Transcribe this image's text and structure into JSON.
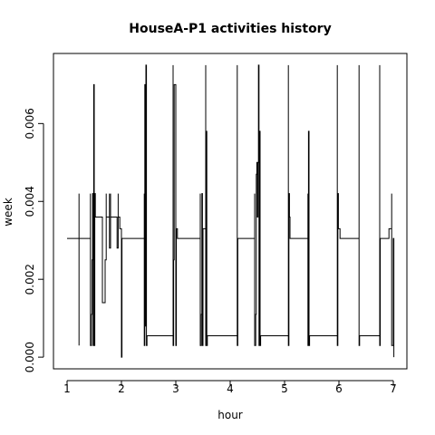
{
  "chart_data": {
    "type": "line",
    "title": "HouseA-P1 activities history",
    "xlabel": "hour",
    "ylabel": "week",
    "xlim": [
      0.75,
      7.25
    ],
    "ylim": [
      -0.0003,
      0.0078
    ],
    "x_ticks": [
      1,
      2,
      3,
      4,
      5,
      6,
      7
    ],
    "x_tick_labels": [
      "1",
      "2",
      "3",
      "4",
      "5",
      "6",
      "7"
    ],
    "y_ticks": [
      0.0,
      0.002,
      0.004,
      0.006
    ],
    "y_tick_labels": [
      "0.000",
      "0.002",
      "0.004",
      "0.006"
    ],
    "grid": false,
    "legend": "none",
    "line_color": "#000000",
    "series": [
      {
        "points": [
          [
            1.0,
            0.00305
          ],
          [
            1.22,
            0.00305
          ],
          [
            1.22,
            0.0042
          ],
          [
            1.22,
            0.0003
          ],
          [
            1.22,
            0.00305
          ],
          [
            1.43,
            0.00305
          ],
          [
            1.43,
            0.0042
          ],
          [
            1.43,
            0.0003
          ],
          [
            1.45,
            0.0003
          ],
          [
            1.45,
            0.0011
          ],
          [
            1.46,
            0.0011
          ],
          [
            1.46,
            0.0025
          ],
          [
            1.47,
            0.0025
          ],
          [
            1.47,
            0.0042
          ],
          [
            1.48,
            0.0042
          ],
          [
            1.48,
            0.0003
          ],
          [
            1.49,
            0.0003
          ],
          [
            1.49,
            0.007
          ],
          [
            1.5,
            0.007
          ],
          [
            1.5,
            0.0003
          ],
          [
            1.51,
            0.0003
          ],
          [
            1.51,
            0.0042
          ],
          [
            1.52,
            0.0042
          ],
          [
            1.52,
            0.0036
          ],
          [
            1.65,
            0.0036
          ],
          [
            1.65,
            0.0014
          ],
          [
            1.7,
            0.0014
          ],
          [
            1.7,
            0.0025
          ],
          [
            1.72,
            0.0025
          ],
          [
            1.72,
            0.0042
          ],
          [
            1.72,
            0.0036
          ],
          [
            1.78,
            0.0036
          ],
          [
            1.78,
            0.0042
          ],
          [
            1.78,
            0.0028
          ],
          [
            1.8,
            0.0028
          ],
          [
            1.8,
            0.0042
          ],
          [
            1.8,
            0.0036
          ],
          [
            1.92,
            0.0036
          ],
          [
            1.92,
            0.0028
          ],
          [
            1.94,
            0.0028
          ],
          [
            1.94,
            0.0042
          ],
          [
            1.94,
            0.0036
          ],
          [
            1.97,
            0.0036
          ],
          [
            1.97,
            0.0033
          ],
          [
            2.0,
            0.0033
          ],
          [
            2.0,
            0.0
          ],
          [
            2.01,
            0.0
          ],
          [
            2.01,
            0.00305
          ],
          [
            2.42,
            0.00305
          ],
          [
            2.42,
            0.0042
          ],
          [
            2.42,
            0.0003
          ],
          [
            2.43,
            0.0003
          ],
          [
            2.43,
            0.007
          ],
          [
            2.44,
            0.007
          ],
          [
            2.44,
            0.0008
          ],
          [
            2.45,
            0.0008
          ],
          [
            2.45,
            0.0075
          ],
          [
            2.46,
            0.0075
          ],
          [
            2.46,
            0.0003
          ],
          [
            2.47,
            0.0003
          ],
          [
            2.47,
            0.00055
          ],
          [
            2.95,
            0.00055
          ],
          [
            2.95,
            0.0075
          ],
          [
            2.95,
            0.0003
          ],
          [
            2.96,
            0.0003
          ],
          [
            2.96,
            0.0025
          ],
          [
            2.97,
            0.0025
          ],
          [
            2.97,
            0.007
          ],
          [
            3.0,
            0.007
          ],
          [
            3.0,
            0.0003
          ],
          [
            3.01,
            0.0003
          ],
          [
            3.01,
            0.0033
          ],
          [
            3.03,
            0.0033
          ],
          [
            3.03,
            0.00305
          ],
          [
            3.45,
            0.00305
          ],
          [
            3.45,
            0.0042
          ],
          [
            3.45,
            0.0003
          ],
          [
            3.47,
            0.0003
          ],
          [
            3.47,
            0.0011
          ],
          [
            3.48,
            0.0011
          ],
          [
            3.48,
            0.0042
          ],
          [
            3.49,
            0.0042
          ],
          [
            3.49,
            0.0003
          ],
          [
            3.5,
            0.0003
          ],
          [
            3.5,
            0.0033
          ],
          [
            3.55,
            0.0033
          ],
          [
            3.55,
            0.0075
          ],
          [
            3.55,
            0.0003
          ],
          [
            3.56,
            0.0003
          ],
          [
            3.56,
            0.0058
          ],
          [
            3.57,
            0.0058
          ],
          [
            3.57,
            0.0003
          ],
          [
            3.58,
            0.0003
          ],
          [
            3.58,
            0.00055
          ],
          [
            4.13,
            0.00055
          ],
          [
            4.13,
            0.0075
          ],
          [
            4.13,
            0.0003
          ],
          [
            4.14,
            0.0003
          ],
          [
            4.14,
            0.00305
          ],
          [
            4.45,
            0.00305
          ],
          [
            4.45,
            0.0042
          ],
          [
            4.45,
            0.0003
          ],
          [
            4.47,
            0.0003
          ],
          [
            4.47,
            0.0011
          ],
          [
            4.48,
            0.0011
          ],
          [
            4.48,
            0.0047
          ],
          [
            4.49,
            0.0047
          ],
          [
            4.49,
            0.005
          ],
          [
            4.5,
            0.005
          ],
          [
            4.5,
            0.0036
          ],
          [
            4.51,
            0.0036
          ],
          [
            4.51,
            0.005
          ],
          [
            4.52,
            0.005
          ],
          [
            4.52,
            0.0075
          ],
          [
            4.53,
            0.0075
          ],
          [
            4.53,
            0.0003
          ],
          [
            4.54,
            0.0003
          ],
          [
            4.54,
            0.0058
          ],
          [
            4.55,
            0.0058
          ],
          [
            4.55,
            0.0003
          ],
          [
            4.56,
            0.0003
          ],
          [
            4.56,
            0.00055
          ],
          [
            5.07,
            0.00055
          ],
          [
            5.07,
            0.0075
          ],
          [
            5.07,
            0.0003
          ],
          [
            5.08,
            0.0003
          ],
          [
            5.08,
            0.0042
          ],
          [
            5.09,
            0.0042
          ],
          [
            5.09,
            0.0036
          ],
          [
            5.1,
            0.0036
          ],
          [
            5.1,
            0.00305
          ],
          [
            5.43,
            0.00305
          ],
          [
            5.43,
            0.0042
          ],
          [
            5.43,
            0.0003
          ],
          [
            5.44,
            0.0003
          ],
          [
            5.44,
            0.0058
          ],
          [
            5.45,
            0.0058
          ],
          [
            5.45,
            0.0003
          ],
          [
            5.46,
            0.0003
          ],
          [
            5.46,
            0.00055
          ],
          [
            5.97,
            0.00055
          ],
          [
            5.97,
            0.0075
          ],
          [
            5.97,
            0.0003
          ],
          [
            5.98,
            0.0003
          ],
          [
            5.98,
            0.0042
          ],
          [
            5.99,
            0.0042
          ],
          [
            5.99,
            0.0033
          ],
          [
            6.02,
            0.0033
          ],
          [
            6.02,
            0.00305
          ],
          [
            6.37,
            0.00305
          ],
          [
            6.37,
            0.0075
          ],
          [
            6.37,
            0.0003
          ],
          [
            6.38,
            0.0003
          ],
          [
            6.38,
            0.00055
          ],
          [
            6.75,
            0.00055
          ],
          [
            6.75,
            0.0075
          ],
          [
            6.75,
            0.0003
          ],
          [
            6.76,
            0.0003
          ],
          [
            6.76,
            0.00305
          ],
          [
            6.92,
            0.00305
          ],
          [
            6.92,
            0.0033
          ],
          [
            6.97,
            0.0033
          ],
          [
            6.97,
            0.0042
          ],
          [
            6.97,
            0.0003
          ],
          [
            7.0,
            0.0003
          ],
          [
            7.0,
            0.00305
          ],
          [
            7.01,
            0.00305
          ],
          [
            7.01,
            0.0
          ]
        ]
      }
    ]
  }
}
